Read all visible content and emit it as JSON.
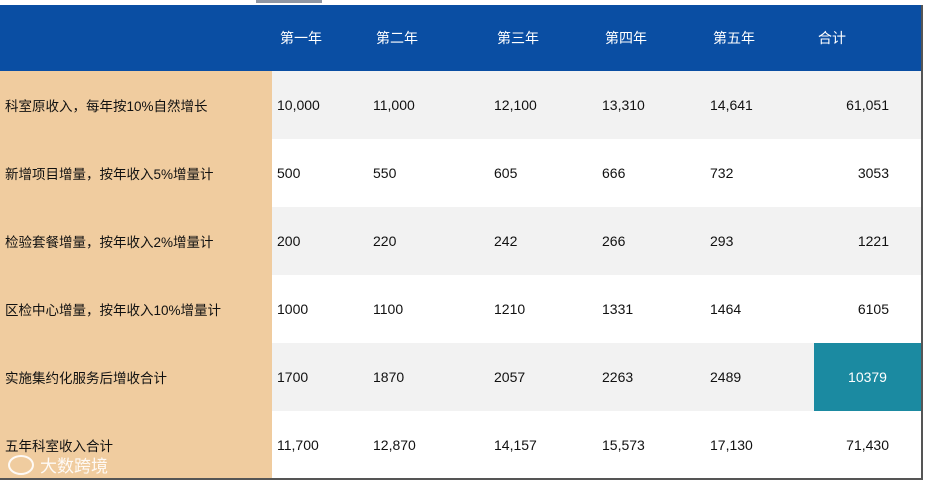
{
  "table": {
    "headers": [
      "",
      "第一年",
      "第二年",
      "第三年",
      "第四年",
      "第五年",
      "合计"
    ],
    "rows": [
      {
        "label": "科室原收入，每年按10%自然增长",
        "values": [
          "10,000",
          "11,000",
          "12,100",
          "13,310",
          "14,641"
        ],
        "total": "61,051"
      },
      {
        "label": "新增项目增量，按年收入5%增量计",
        "values": [
          "500",
          "550",
          "605",
          "666",
          "732"
        ],
        "total": "3053"
      },
      {
        "label": "检验套餐增量，按年收入2%增量计",
        "values": [
          "200",
          "220",
          "242",
          "266",
          "293"
        ],
        "total": "1221"
      },
      {
        "label": "区检中心增量，按年收入10%增量计",
        "values": [
          "1000",
          "1100",
          "1210",
          "1331",
          "1464"
        ],
        "total": "6105"
      },
      {
        "label": "实施集约化服务后增收合计",
        "values": [
          "1700",
          "1870",
          "2057",
          "2263",
          "2489"
        ],
        "total": "10379"
      },
      {
        "label": "五年科室收入合计",
        "values": [
          "11,700",
          "12,870",
          "14,157",
          "15,573",
          "17,130"
        ],
        "total": "71,430"
      }
    ]
  },
  "watermark": {
    "text": "大数跨境"
  },
  "colors": {
    "header_bg": "#0a4ea3",
    "label_bg": "#f0cc9f",
    "highlight": "#1b8aa1",
    "alt_row": "#f2f2f2"
  }
}
